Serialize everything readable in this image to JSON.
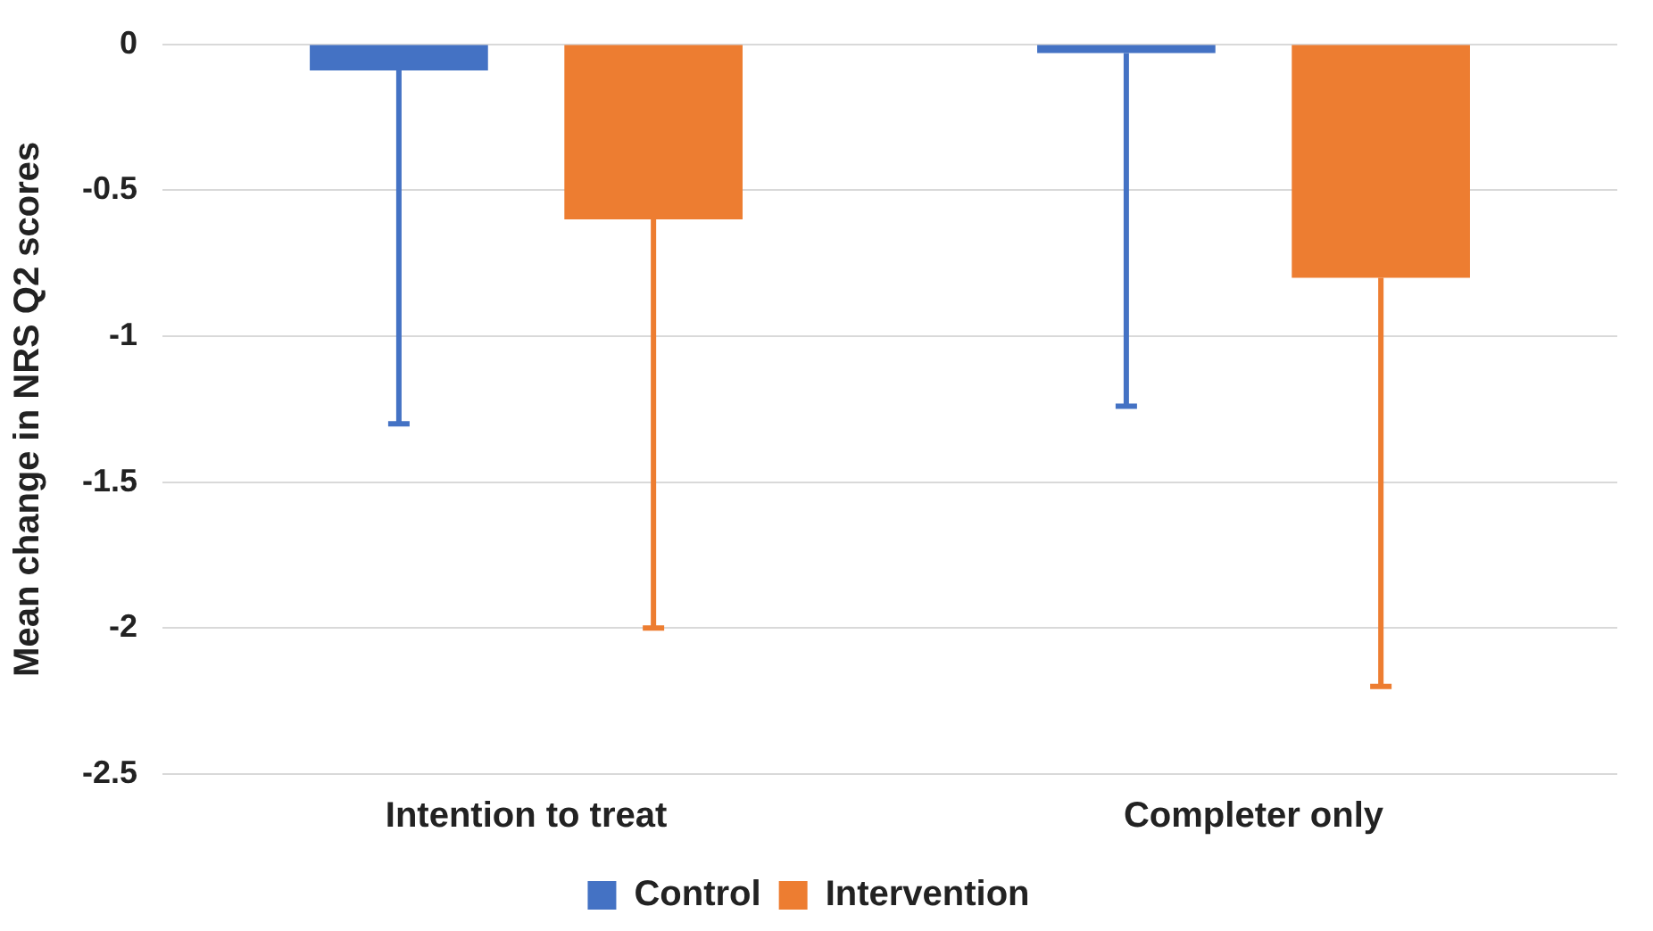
{
  "chart_data": {
    "type": "bar",
    "ylabel": "Mean change in NRS Q2 scores",
    "categories": [
      "Intention to treat",
      "Completer only"
    ],
    "series": [
      {
        "name": "Control",
        "color": "#4472c4",
        "values": [
          -0.09,
          -0.03
        ],
        "errors": [
          [
            -1.3,
            -0.09
          ],
          [
            -1.24,
            -0.03
          ]
        ]
      },
      {
        "name": "Intervention",
        "color": "#ed7d31",
        "values": [
          -0.6,
          -0.8
        ],
        "errors": [
          [
            -2,
            -0.6
          ],
          [
            -2.2,
            -0.8
          ]
        ]
      }
    ],
    "ylim": [
      -2.5,
      0
    ],
    "yticks": [
      0,
      -0.5,
      -1,
      -1.5,
      -2,
      -2.5
    ],
    "grid": "y",
    "legend": "bottom"
  }
}
